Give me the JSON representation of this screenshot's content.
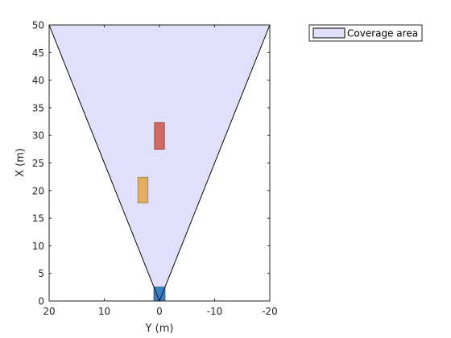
{
  "chart_data": {
    "type": "area",
    "xlabel": "Y (m)",
    "ylabel": "X (m)",
    "xlim": [
      20,
      -20
    ],
    "ylim": [
      0,
      50
    ],
    "x_reversed": true,
    "xticks": [
      20,
      10,
      0,
      -10,
      -20
    ],
    "yticks": [
      0,
      5,
      10,
      15,
      20,
      25,
      30,
      35,
      40,
      45,
      50
    ],
    "xtick_labels": [
      "20",
      "10",
      "0",
      "-10",
      "-20"
    ],
    "ytick_labels": [
      "0",
      "5",
      "10",
      "15",
      "20",
      "25",
      "30",
      "35",
      "40",
      "45",
      "50"
    ],
    "grid": false,
    "legend": {
      "position": "outside-top-right",
      "entries": [
        "Coverage area"
      ]
    },
    "series": [
      {
        "name": "Coverage area",
        "kind": "polygon",
        "points": [
          [
            0,
            0
          ],
          [
            20,
            50
          ],
          [
            -20,
            50
          ]
        ],
        "fill": "#e0e0fb",
        "edge": "#000000"
      }
    ],
    "rectangles": [
      {
        "kind": "ego",
        "y_center": 0,
        "x_min": 0,
        "x_max": 2.5,
        "width": 2.0,
        "fill": "#3a80c4",
        "edge": "#2a5d8f"
      },
      {
        "kind": "object",
        "y_center": 0,
        "x_min": 27.5,
        "x_max": 32.3,
        "width": 1.8,
        "fill": "#cd6b64",
        "edge": "#a4473f"
      },
      {
        "kind": "object",
        "y_center": 3,
        "x_min": 17.8,
        "x_max": 22.4,
        "width": 1.8,
        "fill": "#dfb062",
        "edge": "#b3883f"
      }
    ]
  }
}
